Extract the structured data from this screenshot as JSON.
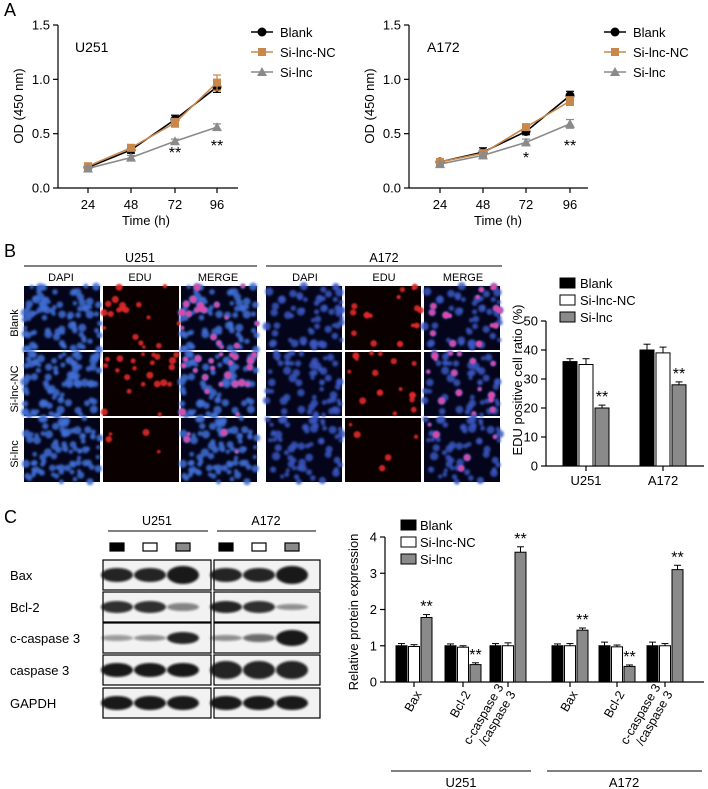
{
  "panels": {
    "A": "A",
    "B": "B",
    "C": "C"
  },
  "colors": {
    "blank": "#000000",
    "si_lnc_nc": "#c8884b",
    "si_lnc": "#8a8a8a",
    "panel_black": "#000000"
  },
  "chart_data": [
    {
      "id": "A-left",
      "type": "line",
      "title": "U251",
      "xlabel": "Time (h)",
      "ylabel": "OD (450 nm)",
      "x": [
        24,
        48,
        72,
        96
      ],
      "ylim": [
        0,
        1.5
      ],
      "yticks": [
        "0.0",
        "0.5",
        "1.0",
        "1.5"
      ],
      "xticks": [
        "24",
        "48",
        "72",
        "96"
      ],
      "series": [
        {
          "name": "Blank",
          "color": "#000000",
          "marker": "circle",
          "values": [
            0.19,
            0.35,
            0.63,
            0.93
          ],
          "errors": [
            0.03,
            0.03,
            0.04,
            0.05
          ]
        },
        {
          "name": "Si-lnc-NC",
          "color": "#c8884b",
          "marker": "square",
          "values": [
            0.2,
            0.37,
            0.6,
            0.97
          ],
          "errors": [
            0.03,
            0.03,
            0.04,
            0.07
          ]
        },
        {
          "name": "Si-lnc",
          "color": "#8a8a8a",
          "marker": "triangle",
          "values": [
            0.18,
            0.28,
            0.43,
            0.56
          ],
          "errors": [
            0.02,
            0.02,
            0.02,
            0.03
          ]
        }
      ],
      "annotations": [
        {
          "x": 72,
          "text": "**"
        },
        {
          "x": 96,
          "text": "**"
        }
      ]
    },
    {
      "id": "A-right",
      "type": "line",
      "title": "A172",
      "xlabel": "Time (h)",
      "ylabel": "OD (450 nm)",
      "x": [
        24,
        48,
        72,
        96
      ],
      "ylim": [
        0,
        1.5
      ],
      "yticks": [
        "0.0",
        "0.5",
        "1.0",
        "1.5"
      ],
      "xticks": [
        "24",
        "48",
        "72",
        "96"
      ],
      "series": [
        {
          "name": "Blank",
          "color": "#000000",
          "marker": "circle",
          "values": [
            0.24,
            0.33,
            0.52,
            0.85
          ],
          "errors": [
            0.03,
            0.04,
            0.03,
            0.04
          ]
        },
        {
          "name": "Si-lnc-NC",
          "color": "#c8884b",
          "marker": "square",
          "values": [
            0.24,
            0.32,
            0.56,
            0.8
          ],
          "errors": [
            0.03,
            0.03,
            0.03,
            0.04
          ]
        },
        {
          "name": "Si-lnc",
          "color": "#8a8a8a",
          "marker": "triangle",
          "values": [
            0.22,
            0.3,
            0.42,
            0.59
          ],
          "errors": [
            0.02,
            0.03,
            0.03,
            0.04
          ]
        }
      ],
      "annotations": [
        {
          "x": 72,
          "text": "*"
        },
        {
          "x": 96,
          "text": "**"
        }
      ]
    },
    {
      "id": "B-bar",
      "type": "bar",
      "ylabel": "EDU positive cell ratio (%)",
      "categories": [
        "U251",
        "A172"
      ],
      "ylim": [
        0,
        50
      ],
      "yticks": [
        "0",
        "10",
        "20",
        "30",
        "40",
        "50"
      ],
      "series": [
        {
          "name": "Blank",
          "color": "#000000",
          "values": [
            36,
            40
          ],
          "errors": [
            1,
            2
          ]
        },
        {
          "name": "Si-lnc-NC",
          "color": "#ffffff",
          "values": [
            35,
            39
          ],
          "errors": [
            2,
            2
          ]
        },
        {
          "name": "Si-lnc",
          "color": "#8a8a8a",
          "values": [
            20,
            28
          ],
          "errors": [
            1,
            1
          ]
        }
      ],
      "annotations": [
        {
          "category": "U251",
          "text": "**"
        },
        {
          "category": "A172",
          "text": "**"
        }
      ]
    },
    {
      "id": "C-bar",
      "type": "bar",
      "ylabel": "Relative protein expression",
      "categories": [
        "Bax",
        "Bcl-2",
        "c-caspase 3 /caspase 3",
        "Bax",
        "Bcl-2",
        "c-caspase 3 /caspase 3"
      ],
      "category_lines": [
        [
          "Bax"
        ],
        [
          "Bcl-2"
        ],
        [
          "c-caspase 3",
          "/caspase 3"
        ],
        [
          "Bax"
        ],
        [
          "Bcl-2"
        ],
        [
          "c-caspase 3",
          "/caspase 3"
        ]
      ],
      "groups": [
        "U251",
        "A172"
      ],
      "ylim": [
        0,
        4
      ],
      "yticks": [
        "0",
        "1",
        "2",
        "3",
        "4"
      ],
      "series": [
        {
          "name": "Blank",
          "color": "#000000",
          "values": [
            1.0,
            1.0,
            1.0,
            1.0,
            1.0,
            1.0
          ],
          "errors": [
            0.06,
            0.05,
            0.06,
            0.05,
            0.1,
            0.1
          ]
        },
        {
          "name": "Si-lnc-NC",
          "color": "#ffffff",
          "values": [
            0.98,
            0.96,
            1.0,
            1.0,
            0.97,
            1.0
          ],
          "errors": [
            0.05,
            0.04,
            0.08,
            0.06,
            0.05,
            0.06
          ]
        },
        {
          "name": "Si-lnc",
          "color": "#8a8a8a",
          "values": [
            1.78,
            0.48,
            3.58,
            1.43,
            0.43,
            3.1
          ],
          "errors": [
            0.08,
            0.05,
            0.15,
            0.06,
            0.04,
            0.12
          ]
        }
      ],
      "annotations": [
        "**",
        "**",
        "**",
        "**",
        "**",
        "**"
      ]
    }
  ],
  "micrographs": {
    "cell_lines": [
      "U251",
      "A172"
    ],
    "columns": [
      "DAPI",
      "EDU",
      "MERGE"
    ],
    "rows": [
      "Blank",
      "Si-lnc-NC",
      "Si-lnc"
    ]
  },
  "western": {
    "cell_lines": [
      "U251",
      "A172"
    ],
    "proteins": [
      "Bax",
      "Bcl-2",
      "c-caspase 3",
      "caspase 3",
      "GAPDH"
    ]
  }
}
